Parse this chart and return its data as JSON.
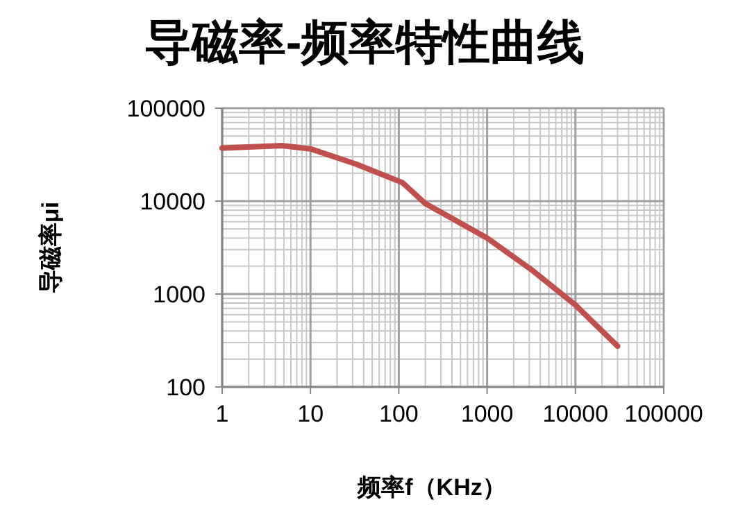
{
  "chart_data": {
    "type": "line",
    "title": "导磁率-频率特性曲线",
    "xlabel": "频率f（KHz）",
    "ylabel": "导磁率μi",
    "log": "xy",
    "grid": true,
    "marker": "none",
    "line_style": "solid",
    "xlim": [
      1,
      100000
    ],
    "ylim": [
      100,
      100000
    ],
    "xticks": [
      1,
      10,
      100,
      1000,
      10000,
      100000
    ],
    "yticks": [
      100,
      1000,
      10000,
      100000
    ],
    "series": [
      {
        "color": "#c0504d",
        "x": [
          1,
          4.8,
          10,
          33,
          110,
          200,
          1000,
          3250,
          10000,
          30000
        ],
        "values": [
          37300,
          39500,
          36500,
          25000,
          15800,
          9400,
          4000,
          1800,
          760,
          275
        ]
      }
    ]
  }
}
